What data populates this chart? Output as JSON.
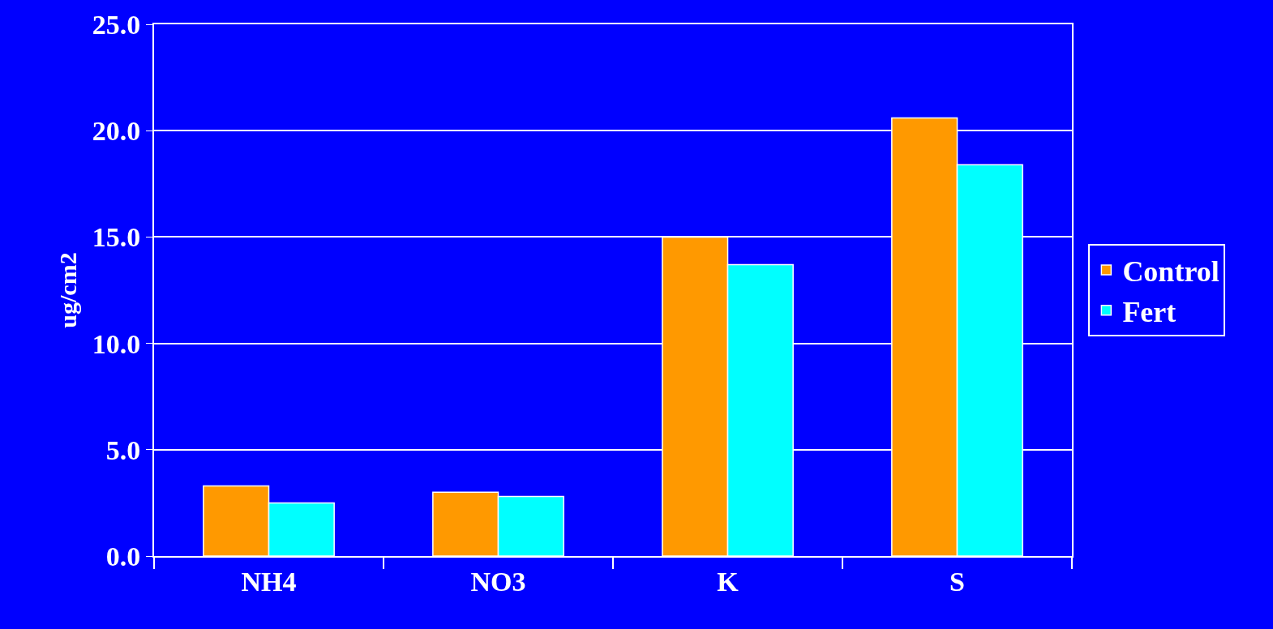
{
  "chart_data": {
    "type": "bar",
    "ylabel": "ug/cm2",
    "categories": [
      "NH4",
      "NO3",
      "K",
      "S"
    ],
    "series": [
      {
        "name": "Control",
        "color": "#ff9900",
        "values": [
          3.3,
          3.0,
          15.0,
          20.6
        ]
      },
      {
        "name": "Fert",
        "color": "#00ffff",
        "values": [
          2.5,
          2.8,
          13.7,
          18.4
        ]
      }
    ],
    "ylim": [
      0,
      25
    ],
    "yticks": [
      {
        "value": 0,
        "label": "0.0"
      },
      {
        "value": 5,
        "label": "5.0"
      },
      {
        "value": 10,
        "label": "10.0"
      },
      {
        "value": 15,
        "label": "15.0"
      },
      {
        "value": 20,
        "label": "20.0"
      },
      {
        "value": 25,
        "label": "25.0"
      }
    ],
    "grid": "y",
    "legend": "right"
  }
}
